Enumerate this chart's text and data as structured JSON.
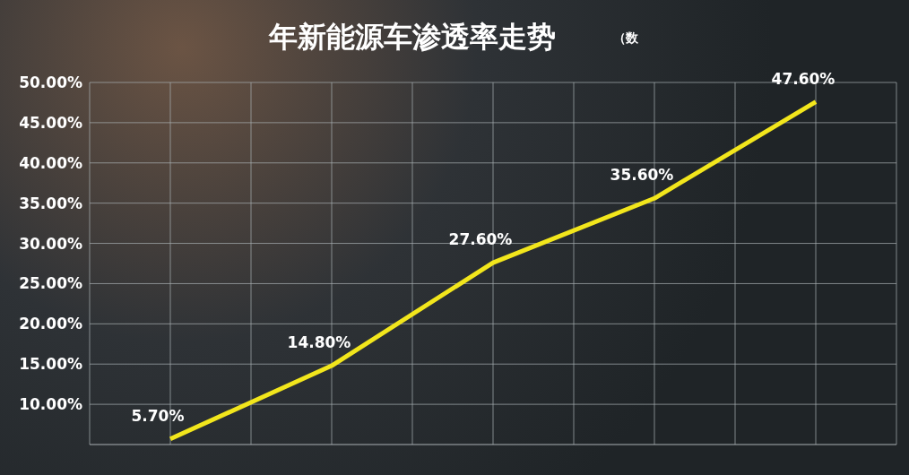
{
  "chart_data": {
    "type": "line",
    "title": "年新能源车渗透率走势",
    "annotations": [
      "（数"
    ],
    "categories": [
      null,
      null,
      null,
      null,
      null
    ],
    "series": [
      {
        "color": "#f2e61c",
        "values": [
          5.7,
          14.8,
          27.6,
          35.6,
          47.6
        ],
        "value_labels": [
          "5.70%",
          "14.80%",
          "27.60%",
          "35.60%",
          "47.60%"
        ]
      }
    ],
    "ylim": [
      5,
      50
    ],
    "yticks": [
      {
        "value": 10,
        "label": "10.00%"
      },
      {
        "value": 15,
        "label": "15.00%"
      },
      {
        "value": 20,
        "label": "20.00%"
      },
      {
        "value": 25,
        "label": "25.00%"
      },
      {
        "value": 30,
        "label": "30.00%"
      },
      {
        "value": 35,
        "label": "35.00%"
      },
      {
        "value": 40,
        "label": "40.00%"
      },
      {
        "value": 45,
        "label": "45.00%"
      },
      {
        "value": 50,
        "label": "50.00%"
      }
    ],
    "grid": true,
    "tick_labels": "y",
    "marker": "none",
    "line_style": "solid"
  }
}
